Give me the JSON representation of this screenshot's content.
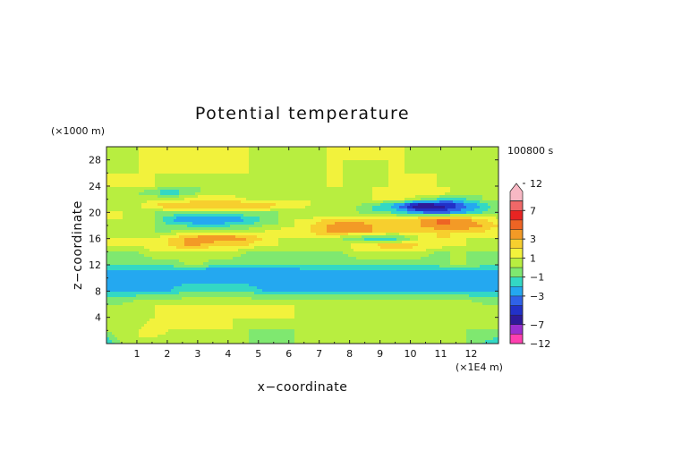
{
  "chart_data": {
    "type": "heatmap",
    "title": "Potential temperature",
    "xlabel": "x−coordinate",
    "ylabel": "z−coordinate",
    "x_unit": "(×1E4 m)",
    "y_unit": "(×1000 m)",
    "time_label": "100800 s",
    "xlim": [
      0,
      12.9
    ],
    "ylim": [
      0,
      30
    ],
    "x_ticks": [
      "1",
      "2",
      "3",
      "4",
      "5",
      "6",
      "7",
      "8",
      "9",
      "10",
      "11",
      "12"
    ],
    "y_ticks": [
      "4",
      "8",
      "12",
      "16",
      "20",
      "24",
      "28"
    ],
    "colorbar": {
      "labels": [
        "12",
        "7",
        "3",
        "1",
        "−1",
        "−3",
        "−7",
        "−12"
      ],
      "levels": [
        -12,
        -9,
        -7,
        -5,
        -4,
        -3,
        -2,
        -1,
        0,
        1,
        2,
        3,
        4,
        5,
        7,
        9,
        12
      ],
      "colors": [
        "#ff3fb0",
        "#9b2fd0",
        "#2e1a9a",
        "#2231c8",
        "#2f62e8",
        "#24a8f0",
        "#33d8c4",
        "#7fe870",
        "#b8ee40",
        "#f2f23c",
        "#f7cf2e",
        "#f39a26",
        "#ee6424",
        "#e82422",
        "#f06868",
        "#f8b8c4"
      ]
    },
    "field": {
      "x_count": 26,
      "z": [
        0,
        2,
        4,
        6,
        8,
        10,
        11,
        12,
        14,
        15,
        16,
        17,
        18,
        19,
        20,
        21,
        22,
        23,
        24,
        26,
        28,
        30
      ],
      "rows": [
        [
          -2,
          0,
          1,
          0,
          0,
          0,
          0,
          0,
          0,
          0,
          -1,
          -1,
          0,
          0,
          0,
          0,
          0,
          0,
          0,
          0,
          0,
          0,
          0,
          0,
          -1,
          -2
        ],
        [
          0,
          1,
          1,
          2,
          1,
          1,
          1,
          1,
          1,
          0,
          0,
          0,
          0,
          0,
          0,
          0,
          0,
          0,
          0,
          0,
          0,
          1,
          0,
          0,
          0,
          0
        ],
        [
          0,
          0,
          0,
          1,
          1,
          1,
          1,
          1,
          1,
          1,
          1,
          1,
          1,
          0,
          0,
          0,
          0,
          0,
          0,
          0,
          0,
          0,
          0,
          0,
          0,
          0
        ],
        [
          0,
          0,
          1,
          1,
          1,
          1,
          1,
          1,
          1,
          1,
          1,
          1,
          1,
          1,
          1,
          1,
          1,
          1,
          1,
          1,
          1,
          1,
          1,
          1,
          0,
          0
        ],
        [
          -2,
          -2,
          -2,
          -2,
          -2,
          -1,
          -1,
          -1,
          -1,
          -1,
          -2,
          -2,
          -2,
          -2,
          -2,
          -2,
          -2,
          -2,
          -2,
          -2,
          -2,
          -2,
          -2,
          -2,
          -2,
          -2
        ],
        [
          -3,
          -3,
          -3,
          -3,
          -3,
          -3,
          -3,
          -3,
          -3,
          -3,
          -3,
          -3,
          -3,
          -3,
          -3,
          -3,
          -3,
          -3,
          -3,
          -3,
          -3,
          -3,
          -3,
          -3,
          -3,
          -3
        ],
        [
          -2,
          -2,
          -2,
          -2,
          -2,
          -2,
          -3,
          -3,
          -3,
          -3,
          -3,
          -3,
          -3,
          -2,
          -2,
          -2,
          -2,
          -2,
          -2,
          -2,
          -2,
          -2,
          -2,
          -2,
          -2,
          -2
        ],
        [
          -1,
          -1,
          -1,
          -1,
          -1,
          0,
          0,
          -1,
          -1,
          -1,
          -1,
          -1,
          -1,
          -1,
          -1,
          -1,
          -1,
          -1,
          -1,
          -1,
          -1,
          -1,
          0,
          0,
          -1,
          -1
        ],
        [
          0,
          0,
          0,
          1,
          1,
          1,
          1,
          1,
          1,
          0,
          0,
          0,
          0,
          0,
          0,
          0,
          1,
          1,
          1,
          1,
          1,
          0,
          0,
          0,
          0,
          0
        ],
        [
          1,
          1,
          1,
          2,
          2,
          3,
          3,
          2,
          2,
          2,
          1,
          1,
          0,
          0,
          0,
          0,
          2,
          2,
          3,
          3,
          2,
          2,
          1,
          1,
          0,
          0
        ],
        [
          1,
          1,
          1,
          1,
          2,
          3,
          4,
          4,
          4,
          3,
          2,
          1,
          1,
          1,
          1,
          0,
          -1,
          -2,
          -2,
          -1,
          1,
          2,
          2,
          1,
          1,
          1
        ],
        [
          0,
          0,
          0,
          0,
          0,
          1,
          1,
          1,
          1,
          1,
          1,
          2,
          2,
          2,
          3,
          3,
          3,
          3,
          2,
          2,
          2,
          2,
          2,
          2,
          2,
          1
        ],
        [
          0,
          0,
          0,
          0,
          -1,
          -1,
          -2,
          -2,
          -1,
          -1,
          0,
          0,
          1,
          2,
          3,
          4,
          4,
          3,
          3,
          3,
          3,
          4,
          4,
          4,
          3,
          2
        ],
        [
          1,
          1,
          1,
          0,
          -2,
          -3,
          -3,
          -3,
          -3,
          -2,
          -1,
          0,
          1,
          1,
          2,
          2,
          2,
          2,
          2,
          2,
          3,
          4,
          4,
          3,
          2,
          1
        ],
        [
          1,
          1,
          0,
          0,
          0,
          0,
          0,
          0,
          0,
          0,
          0,
          0,
          0,
          0,
          0,
          0,
          0,
          -1,
          -1,
          -2,
          -3,
          -4,
          -3,
          -2,
          -1,
          0
        ],
        [
          0,
          0,
          1,
          2,
          3,
          3,
          3,
          3,
          3,
          3,
          3,
          2,
          2,
          1,
          1,
          0,
          0,
          -1,
          -2,
          -4,
          -7,
          -6,
          -5,
          -3,
          -2,
          0
        ],
        [
          0,
          0,
          0,
          1,
          1,
          1,
          2,
          2,
          2,
          1,
          1,
          1,
          1,
          1,
          0,
          0,
          1,
          1,
          1,
          1,
          0,
          -1,
          -2,
          -1,
          0,
          0
        ],
        [
          0,
          0,
          0,
          -1,
          -2,
          -1,
          0,
          0,
          0,
          0,
          0,
          0,
          0,
          0,
          0,
          0,
          0,
          1,
          2,
          2,
          2,
          2,
          1,
          1,
          0,
          0
        ],
        [
          1,
          1,
          1,
          1,
          0,
          0,
          0,
          0,
          0,
          0,
          0,
          0,
          0,
          0,
          1,
          1,
          1,
          1,
          1,
          1,
          1,
          1,
          1,
          0,
          0,
          0
        ],
        [
          1,
          1,
          1,
          1,
          1,
          1,
          1,
          1,
          1,
          1,
          1,
          0,
          0,
          1,
          1,
          1,
          0,
          0,
          1,
          1,
          1,
          1,
          0,
          0,
          0,
          0
        ],
        [
          0,
          0,
          1,
          1,
          1,
          1,
          1,
          1,
          1,
          1,
          0,
          0,
          0,
          0,
          1,
          1,
          1,
          1,
          1,
          1,
          0,
          0,
          0,
          0,
          0,
          0
        ],
        [
          0,
          0,
          1,
          1,
          1,
          1,
          1,
          1,
          1,
          1,
          0,
          0,
          0,
          0,
          1,
          1,
          1,
          1,
          1,
          1,
          0,
          0,
          0,
          0,
          0,
          0
        ]
      ]
    }
  }
}
